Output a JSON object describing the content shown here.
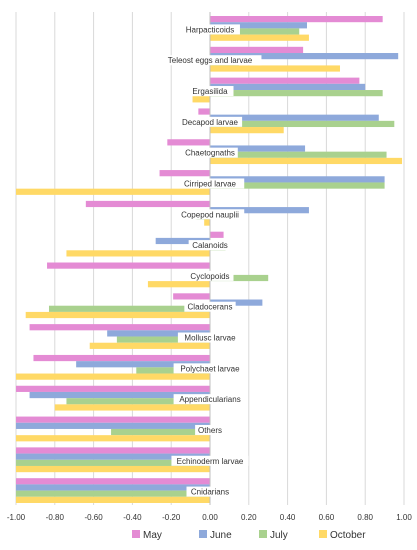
{
  "chart_data": {
    "type": "bar",
    "orientation": "horizontal",
    "categories": [
      "Harpacticoids",
      "Teleost eggs and larvae",
      "Ergasilida",
      "Decapod larvae",
      "Chaetognaths",
      "Cirriped larvae",
      "Copepod nauplii",
      "Calanoids",
      "Cyclopoids",
      "Cladocerans",
      "Mollusc larvae",
      "Polychaet larvae",
      "Appendicularians",
      "Others",
      "Echinoderm larvae",
      "Cnidarians"
    ],
    "series": [
      {
        "name": "May",
        "color": "#e48bd4",
        "values": [
          0.89,
          0.48,
          0.77,
          -0.06,
          -0.22,
          -0.26,
          -0.64,
          0.07,
          -0.84,
          -0.19,
          -0.93,
          -0.91,
          -1.0,
          -1.0,
          -1.0,
          -1.0
        ]
      },
      {
        "name": "June",
        "color": "#8ea9db",
        "values": [
          0.5,
          0.97,
          0.8,
          0.87,
          0.49,
          0.9,
          0.51,
          -0.28,
          0.0,
          0.27,
          -0.53,
          -0.69,
          -0.93,
          -1.0,
          -1.0,
          -1.0
        ]
      },
      {
        "name": "July",
        "color": "#a9d18e",
        "values": [
          0.46,
          0.15,
          0.89,
          0.95,
          0.91,
          0.9,
          -0.07,
          0.08,
          0.3,
          -0.83,
          -0.48,
          -0.38,
          -0.74,
          -0.51,
          -1.0,
          -1.0
        ]
      },
      {
        "name": "October",
        "color": "#ffd966",
        "values": [
          0.51,
          0.67,
          -0.09,
          0.38,
          0.99,
          -1.0,
          -0.03,
          -0.74,
          -0.32,
          -0.95,
          -0.62,
          -1.0,
          -0.8,
          -1.0,
          -1.0,
          -1.0
        ]
      }
    ],
    "xlim": [
      -1.0,
      1.0
    ],
    "ticks": [
      "-1.00",
      "-0.80",
      "-0.60",
      "-0.40",
      "-0.20",
      "0.00",
      "0.20",
      "0.40",
      "0.60",
      "0.80",
      "1.00"
    ],
    "grid": "vertical",
    "legend": "bottom"
  }
}
